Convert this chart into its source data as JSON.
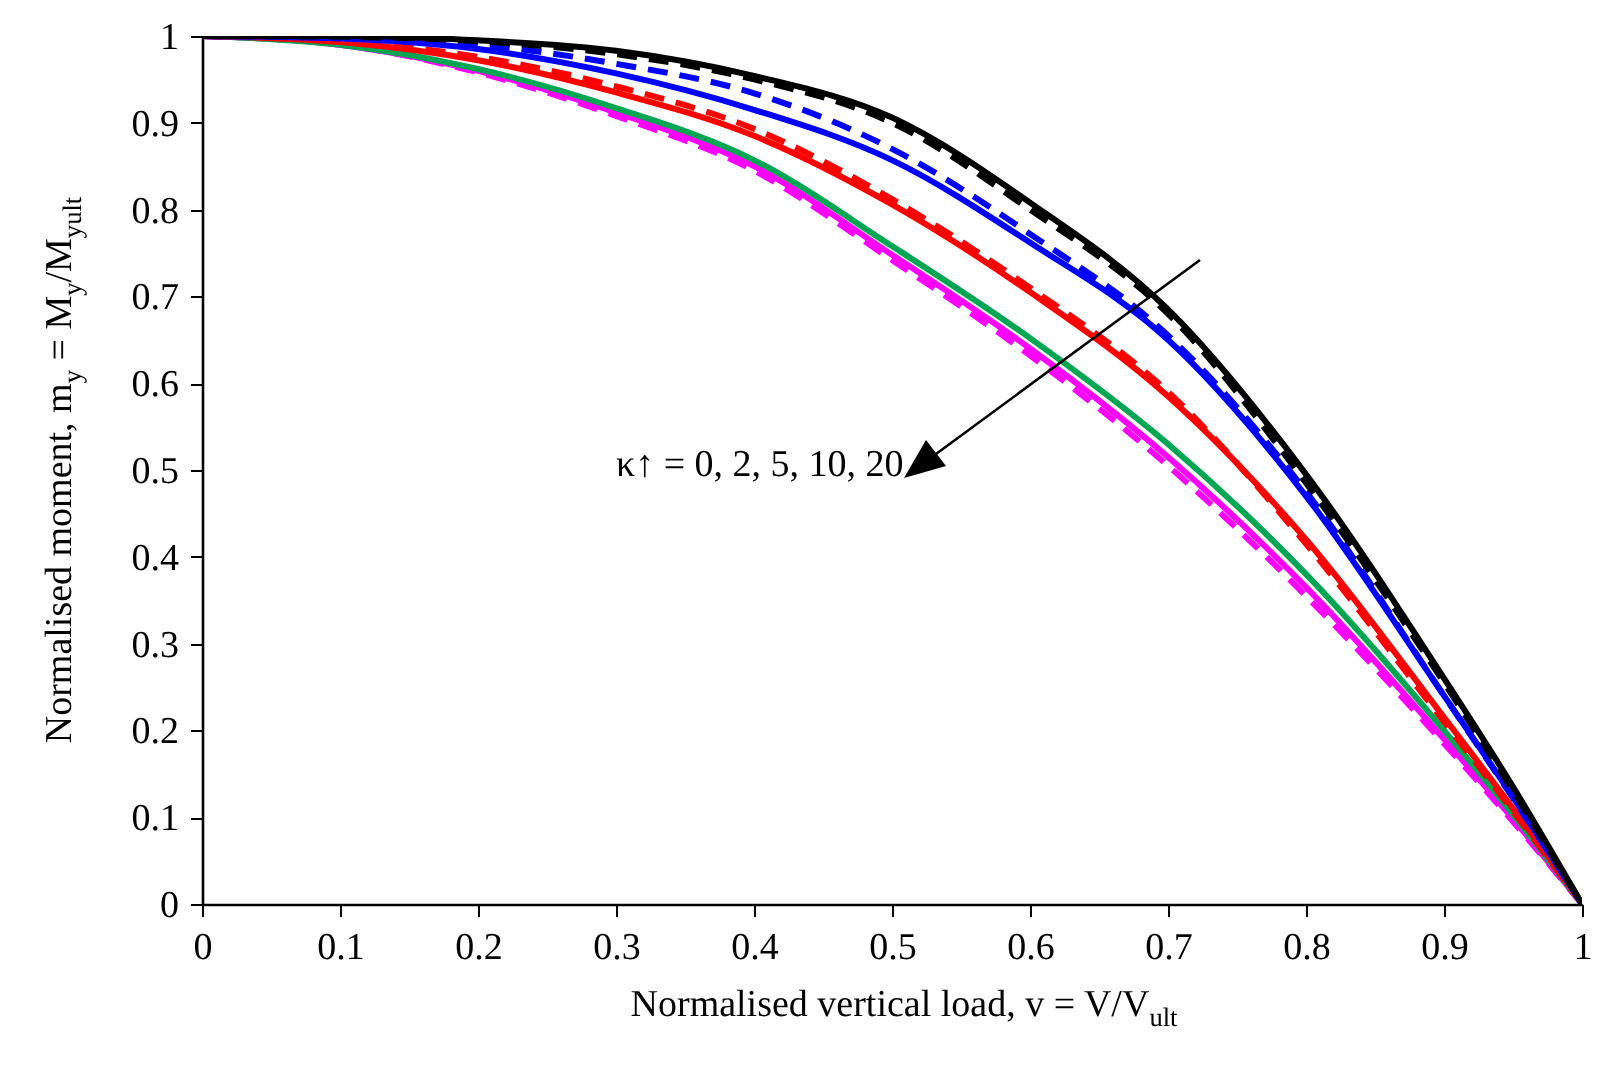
{
  "chart_data": {
    "type": "line",
    "xlabel": "Normalised vertical load, v = V/V$_{ult}$",
    "ylabel": "Normalised moment, m$_{y}$ = M$_{y}$/M$_{yult}$",
    "annotations": [
      "κ↑ = 0, 2, 5, 10, 20"
    ],
    "x": [
      0,
      0.1,
      0.2,
      0.3,
      0.4,
      0.5,
      0.6,
      0.7,
      0.8,
      0.9,
      0.95,
      1
    ],
    "xlim": [
      0,
      1
    ],
    "xticks": [
      0,
      0.1,
      0.2,
      0.3,
      0.4,
      0.5,
      0.6,
      0.7,
      0.8,
      0.9,
      1
    ],
    "ylim": [
      0,
      1
    ],
    "yticks": [
      0,
      0.1,
      0.2,
      0.3,
      0.4,
      0.5,
      0.6,
      0.7,
      0.8,
      0.9,
      1
    ],
    "grid": false,
    "marker": "none",
    "series": [
      {
        "color": "#ff00ff",
        "line_style": "solid",
        "values": [
          1,
          0.99,
          0.96,
          0.912,
          0.85,
          0.748,
          0.64,
          0.515,
          0.365,
          0.19,
          0.098,
          0
        ]
      },
      {
        "color": "#ff00ff",
        "line_style": "dashed",
        "values": [
          1,
          0.99,
          0.958,
          0.908,
          0.845,
          0.742,
          0.632,
          0.505,
          0.355,
          0.185,
          0.095,
          0
        ]
      },
      {
        "color": "#00a651",
        "line_style": "solid",
        "values": [
          1,
          0.99,
          0.962,
          0.917,
          0.857,
          0.758,
          0.652,
          0.53,
          0.38,
          0.2,
          0.103,
          0
        ]
      },
      {
        "color": "#ff0000",
        "line_style": "solid",
        "values": [
          1,
          0.993,
          0.972,
          0.935,
          0.885,
          0.806,
          0.705,
          0.585,
          0.42,
          0.215,
          0.11,
          0
        ]
      },
      {
        "color": "#ff0000",
        "line_style": "dashed",
        "values": [
          1,
          0.994,
          0.976,
          0.942,
          0.893,
          0.812,
          0.71,
          0.59,
          0.415,
          0.21,
          0.107,
          0
        ]
      },
      {
        "color": "#0000ff",
        "line_style": "solid",
        "values": [
          1,
          0.997,
          0.985,
          0.957,
          0.915,
          0.857,
          0.762,
          0.65,
          0.47,
          0.24,
          0.123,
          0
        ]
      },
      {
        "color": "#0000ff",
        "line_style": "dashed",
        "values": [
          1,
          0.998,
          0.99,
          0.968,
          0.934,
          0.87,
          0.772,
          0.655,
          0.475,
          0.24,
          0.122,
          0
        ]
      },
      {
        "color": "#000000",
        "line_style": "dashed",
        "values": [
          1,
          0.999,
          0.994,
          0.979,
          0.95,
          0.9,
          0.8,
          0.68,
          0.485,
          0.255,
          0.13,
          0
        ]
      },
      {
        "color": "#000000",
        "line_style": "solid",
        "values": [
          1,
          1,
          0.995,
          0.983,
          0.954,
          0.906,
          0.808,
          0.685,
          0.495,
          0.26,
          0.135,
          0
        ]
      }
    ]
  }
}
